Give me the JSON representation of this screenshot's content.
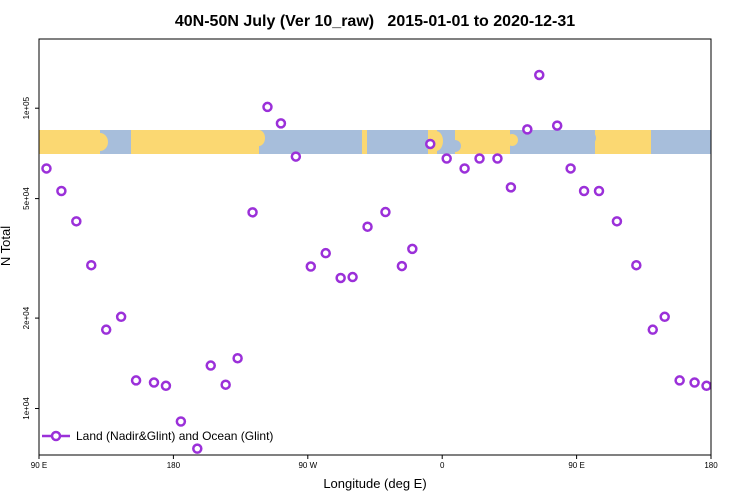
{
  "chart_data": {
    "type": "scatter",
    "title": "40N-50N July (Ver 10_raw)   2015-01-01 to 2020-12-31",
    "xlabel": "Longitude (deg E)",
    "ylabel": "N Total",
    "x_scale": "linear",
    "y_scale": "log",
    "xlim": [
      90,
      540
    ],
    "ylim": [
      7000,
      170000
    ],
    "x_ticks": [
      {
        "value": 90,
        "label": "90 E"
      },
      {
        "value": 180,
        "label": "180"
      },
      {
        "value": 270,
        "label": "90 W"
      },
      {
        "value": 360,
        "label": "0"
      },
      {
        "value": 450,
        "label": "90 E"
      },
      {
        "value": 540,
        "label": "180"
      }
    ],
    "y_ticks": [
      {
        "value": 10000,
        "label": "1e+04"
      },
      {
        "value": 20000,
        "label": "2e+04"
      },
      {
        "value": 50000,
        "label": "5e+04"
      },
      {
        "value": 100000,
        "label": "1e+05"
      }
    ],
    "grid": false,
    "legend_position": "bottom-left",
    "color": "#9b30d9",
    "map_strip": {
      "land_color": "#fbd872",
      "ocean_color": "#a7bedb"
    },
    "series": [
      {
        "name": "Land (Nadir&Glint) and Ocean (Glint)",
        "x": [
          95,
          105,
          115,
          125,
          135,
          145,
          155,
          167,
          175,
          185,
          196,
          205,
          215,
          223,
          233,
          243,
          252,
          262,
          272,
          282,
          292,
          300,
          310,
          322,
          333,
          340,
          352,
          363,
          375,
          385,
          397,
          406,
          417,
          425,
          437,
          446,
          455,
          465,
          477,
          490,
          501,
          509,
          519,
          529,
          537
        ],
        "y": [
          63000,
          53000,
          42000,
          30000,
          18300,
          20200,
          12400,
          12200,
          11900,
          9050,
          7350,
          13900,
          12000,
          14700,
          45000,
          101000,
          89000,
          69000,
          29700,
          32900,
          27200,
          27400,
          40300,
          45100,
          29800,
          34000,
          76000,
          68000,
          63000,
          68000,
          68000,
          54500,
          85000,
          129000,
          87500,
          63000,
          53000,
          53000,
          42000,
          30000,
          18300,
          20200,
          12400,
          12200,
          11900
        ]
      }
    ]
  }
}
